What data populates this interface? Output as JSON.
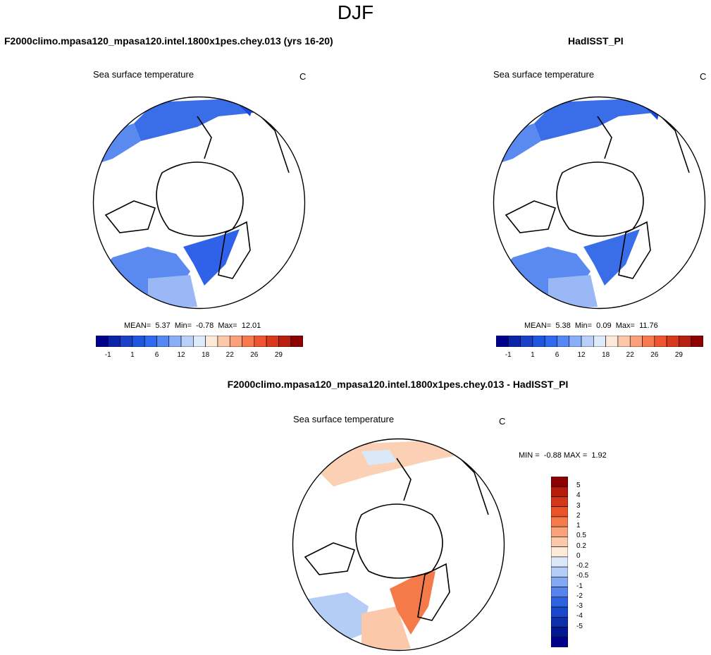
{
  "figure_title": "DJF",
  "panels": [
    {
      "title": "F2000climo.mpasa120_mpasa120.intel.1800x1pes.chey.013 (yrs 16-20)",
      "variable": "Sea surface temperature",
      "units": "C",
      "stats": {
        "mean_label": "MEAN=",
        "mean": "5.37",
        "min_label": "Min=",
        "min": "-0.78",
        "max_label": "Max=",
        "max": "12.01"
      }
    },
    {
      "title": "HadISST_PI",
      "variable": "Sea surface temperature",
      "units": "C",
      "stats": {
        "mean_label": "MEAN=",
        "mean": "5.38",
        "min_label": "Min=",
        "min": "0.09",
        "max_label": "Max=",
        "max": "11.76"
      }
    },
    {
      "title": "F2000climo.mpasa120_mpasa120.intel.1800x1pes.chey.013 - HadISST_PI",
      "variable": "Sea surface temperature",
      "units": "C",
      "stats": {
        "min_label": "MIN =",
        "min": "-0.88",
        "max_label": "MAX =",
        "max": "1.92"
      }
    }
  ],
  "colorbar_horizontal": {
    "colors": [
      "#00008b",
      "#0b24a8",
      "#1a40c8",
      "#2055e0",
      "#2f6af0",
      "#5588f5",
      "#8aaef8",
      "#b9d0f8",
      "#ddebfa",
      "#fde9d9",
      "#fcc8a8",
      "#fba17a",
      "#f77a50",
      "#ee5530",
      "#d8381c",
      "#b81f10",
      "#8b0000"
    ],
    "tick_labels": [
      "-1",
      "1",
      "6",
      "12",
      "18",
      "22",
      "26",
      "29"
    ]
  },
  "colorbar_vertical": {
    "colors": [
      "#8b0000",
      "#b51d0a",
      "#d3361a",
      "#ea5228",
      "#f47a4a",
      "#f9a27a",
      "#fcc8aa",
      "#feeadb",
      "#dbe8f8",
      "#b3cdf6",
      "#85a8f2",
      "#5683ec",
      "#2f62e0",
      "#1a48cc",
      "#0c30aa",
      "#001890",
      "#00008b"
    ],
    "tick_labels": [
      "5",
      "4",
      "3",
      "2",
      "1",
      "0.5",
      "0.2",
      "0",
      "-0.2",
      "-0.5",
      "-1",
      "-2",
      "-3",
      "-4",
      "-5"
    ]
  }
}
